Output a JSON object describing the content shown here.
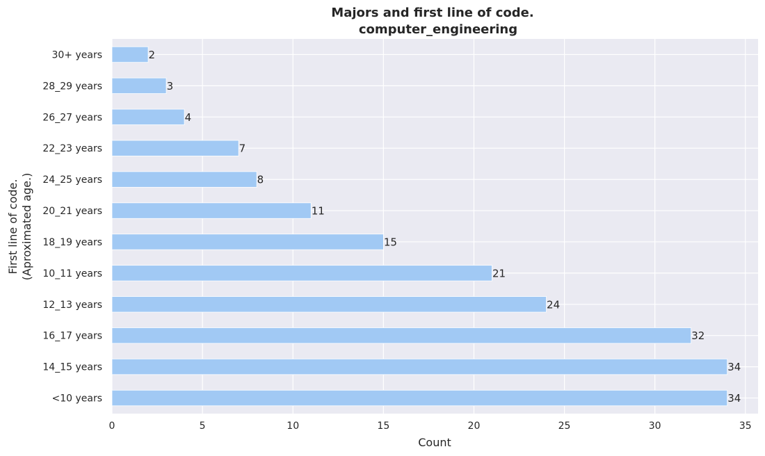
{
  "chart_data": {
    "type": "bar",
    "orientation": "horizontal",
    "title_lines": [
      "Majors and first line of code.",
      "computer_engineering"
    ],
    "xlabel": "Count",
    "ylabel_lines": [
      "First line of code.",
      "(Aproximated age.)"
    ],
    "categories": [
      "<10 years",
      "14_15 years",
      "16_17 years",
      "12_13 years",
      "10_11 years",
      "18_19 years",
      "20_21 years",
      "24_25 years",
      "22_23 years",
      "26_27 years",
      "28_29 years",
      "30+ years"
    ],
    "values": [
      34,
      34,
      32,
      24,
      21,
      15,
      11,
      8,
      7,
      4,
      3,
      2
    ],
    "xlim": [
      0,
      35.7
    ],
    "xticks": [
      0,
      5,
      10,
      15,
      20,
      25,
      30,
      35
    ],
    "grid": true,
    "colors": {
      "bar": "#a1c9f4",
      "plot_background": "#eaeaf2",
      "grid": "#ffffff",
      "text": "#262626"
    }
  }
}
